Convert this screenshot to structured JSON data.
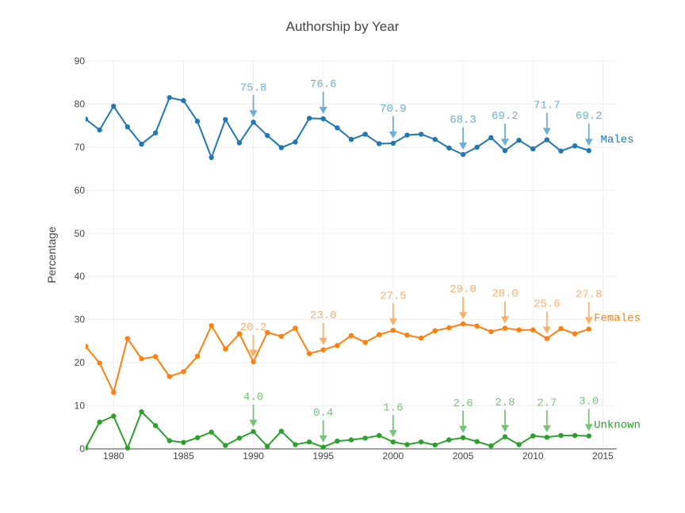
{
  "chart_data": {
    "type": "line",
    "title": "Authorship by Year",
    "xlabel": "",
    "ylabel": "Percentage",
    "xlim": [
      1978,
      2016
    ],
    "ylim": [
      0,
      90
    ],
    "xticks": [
      "1980",
      "1985",
      "1990",
      "1995",
      "2000",
      "2005",
      "2010",
      "2015"
    ],
    "yticks": [
      "0",
      "10",
      "20",
      "30",
      "40",
      "50",
      "60",
      "70",
      "80",
      "90"
    ],
    "grid": true,
    "legend": "none",
    "x": [
      1978,
      1979,
      1980,
      1981,
      1982,
      1983,
      1984,
      1985,
      1986,
      1987,
      1988,
      1989,
      1990,
      1991,
      1992,
      1993,
      1994,
      1995,
      1996,
      1997,
      1998,
      1999,
      2000,
      2001,
      2002,
      2003,
      2004,
      2005,
      2006,
      2007,
      2008,
      2009,
      2010,
      2011,
      2012,
      2013,
      2014
    ],
    "series": [
      {
        "name": "Males",
        "color": "#1f77b4",
        "label_color": "#1f77b4",
        "annotation_color": "#6baed6",
        "values": [
          76.5,
          74.0,
          79.5,
          74.7,
          70.7,
          73.3,
          81.5,
          80.8,
          76.0,
          67.6,
          76.4,
          71.0,
          75.8,
          72.7,
          69.9,
          71.2,
          76.7,
          76.6,
          74.5,
          71.8,
          73.0,
          70.8,
          70.9,
          72.8,
          73.0,
          71.8,
          69.8,
          68.3,
          70.0,
          72.2,
          69.2,
          71.6,
          69.6,
          71.7,
          69.1,
          70.3,
          69.2
        ],
        "annotations": [
          {
            "x": 1990,
            "text": "75.8"
          },
          {
            "x": 1995,
            "text": "76.6"
          },
          {
            "x": 2000,
            "text": "70.9"
          },
          {
            "x": 2005,
            "text": "68.3"
          },
          {
            "x": 2008,
            "text": "69.2"
          },
          {
            "x": 2011,
            "text": "71.7"
          },
          {
            "x": 2014,
            "text": "69.2"
          }
        ]
      },
      {
        "name": "Females",
        "color": "#ff7f0e",
        "label_color": "#ff7f0e",
        "annotation_color": "#fdae6b",
        "values": [
          23.8,
          19.9,
          13.1,
          25.6,
          20.9,
          21.4,
          16.8,
          17.9,
          21.5,
          28.6,
          23.2,
          26.7,
          20.2,
          27.0,
          26.1,
          28.0,
          22.1,
          23.0,
          24.0,
          26.3,
          24.7,
          26.5,
          27.5,
          26.4,
          25.7,
          27.4,
          28.1,
          29.0,
          28.5,
          27.2,
          28.0,
          27.6,
          27.6,
          25.6,
          27.9,
          26.7,
          27.8
        ],
        "annotations": [
          {
            "x": 1990,
            "text": "20.2"
          },
          {
            "x": 1995,
            "text": "23.0"
          },
          {
            "x": 2000,
            "text": "27.5"
          },
          {
            "x": 2005,
            "text": "29.0"
          },
          {
            "x": 2008,
            "text": "28.0"
          },
          {
            "x": 2011,
            "text": "25.6"
          },
          {
            "x": 2014,
            "text": "27.8"
          }
        ]
      },
      {
        "name": "Unknown",
        "color": "#2ca02c",
        "label_color": "#2ca02c",
        "annotation_color": "#74c476",
        "values": [
          0.2,
          6.2,
          7.6,
          0.2,
          8.6,
          5.4,
          1.9,
          1.5,
          2.6,
          3.9,
          0.8,
          2.5,
          4.0,
          0.6,
          4.1,
          1.0,
          1.6,
          0.4,
          1.8,
          2.1,
          2.5,
          3.1,
          1.6,
          1.0,
          1.6,
          0.9,
          2.1,
          2.6,
          1.7,
          0.7,
          2.8,
          1.0,
          3.0,
          2.7,
          3.1,
          3.1,
          3.0
        ],
        "annotations": [
          {
            "x": 1990,
            "text": "4.0"
          },
          {
            "x": 1995,
            "text": "0.4"
          },
          {
            "x": 2000,
            "text": "1.6"
          },
          {
            "x": 2005,
            "text": "2.6"
          },
          {
            "x": 2008,
            "text": "2.8"
          },
          {
            "x": 2011,
            "text": "2.7"
          },
          {
            "x": 2014,
            "text": "3.0"
          }
        ]
      }
    ]
  }
}
